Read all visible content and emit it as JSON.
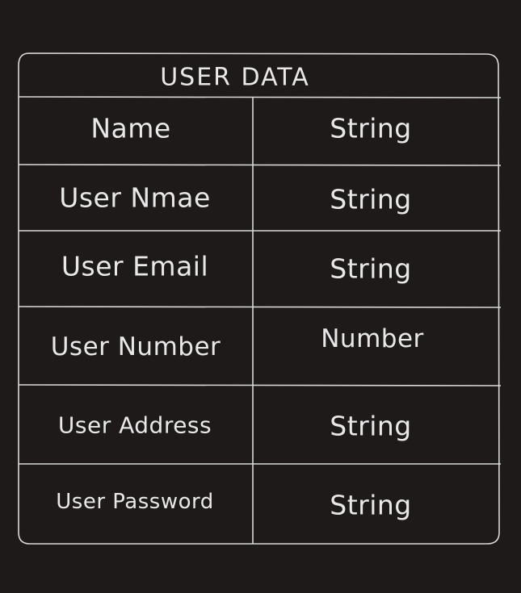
{
  "table": {
    "title": "USER DATA",
    "rows": [
      {
        "field": "Name",
        "type": "String"
      },
      {
        "field": "User Nmae",
        "type": "String"
      },
      {
        "field": "User Email",
        "type": "String"
      },
      {
        "field": "User Number",
        "type": "Number"
      },
      {
        "field": "User Address",
        "type": "String"
      },
      {
        "field": "User Password",
        "type": "String"
      }
    ]
  },
  "colors": {
    "background": "#1e1a1a",
    "stroke": "#d9d9d9",
    "text": "#e8e8e8"
  }
}
